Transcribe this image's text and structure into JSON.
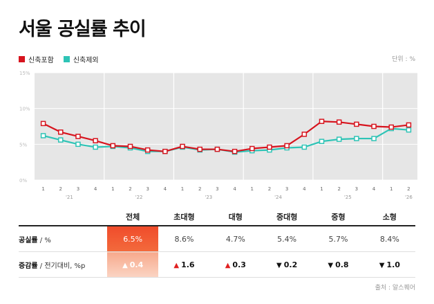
{
  "title": "서울 공실률 추이",
  "unit_label": "단위 : %",
  "source": "출처 : 알스퀘어",
  "legend": [
    {
      "label": "신축포함",
      "color": "#d7141e"
    },
    {
      "label": "신축제외",
      "color": "#2ec4b6"
    }
  ],
  "chart_data": {
    "type": "line",
    "title": "서울 공실률 추이",
    "xlabel": "",
    "ylabel": "",
    "ylim": [
      0,
      15
    ],
    "yticks": [
      "0%",
      "5%",
      "10%",
      "15%"
    ],
    "ytick_values": [
      0,
      5,
      10,
      15
    ],
    "grid": true,
    "legend_position": "top-left",
    "x": [
      "'21 Q1",
      "'21 Q2",
      "'21 Q3",
      "'21 Q4",
      "'22 Q1",
      "'22 Q2",
      "'22 Q3",
      "'22 Q4",
      "'23 Q1",
      "'23 Q2",
      "'23 Q3",
      "'23 Q4",
      "'24 Q1",
      "'24 Q2",
      "'24 Q3",
      "'24 Q4",
      "'25 Q1",
      "'25 Q2",
      "'25 Q3",
      "'25 Q4",
      "'26 Q1",
      "'26 Q2"
    ],
    "quarter_labels": [
      "1",
      "2",
      "3",
      "4",
      "1",
      "2",
      "3",
      "4",
      "1",
      "2",
      "3",
      "4",
      "1",
      "2",
      "3",
      "4",
      "1",
      "2",
      "3",
      "4",
      "1",
      "2"
    ],
    "year_labels": [
      "'21",
      "'22",
      "'23",
      "'24",
      "'25",
      "'26"
    ],
    "series": [
      {
        "name": "신축포함",
        "color": "#d7141e",
        "values": [
          7.9,
          6.7,
          6.1,
          5.5,
          4.8,
          4.7,
          4.2,
          4.0,
          4.7,
          4.3,
          4.3,
          4.0,
          4.4,
          4.6,
          4.8,
          6.4,
          8.2,
          8.1,
          7.8,
          7.5,
          7.4,
          7.7
        ]
      },
      {
        "name": "신축제외",
        "color": "#2ec4b6",
        "values": [
          6.2,
          5.6,
          5.0,
          4.6,
          4.7,
          4.5,
          4.0,
          4.0,
          4.6,
          4.2,
          4.3,
          3.9,
          4.1,
          4.2,
          4.5,
          4.6,
          5.4,
          5.7,
          5.8,
          5.8,
          7.2,
          7.0
        ]
      }
    ]
  },
  "table": {
    "columns": [
      "전체",
      "초대형",
      "대형",
      "중대형",
      "중형",
      "소형"
    ],
    "rows": [
      {
        "label": "공실률",
        "sub": " / %",
        "cells": [
          "6.5%",
          "8.6%",
          "4.7%",
          "5.4%",
          "5.7%",
          "8.4%"
        ]
      },
      {
        "label": "증감률",
        "sub": " / 전기대비, %p",
        "cells": [
          "0.4",
          "1.6",
          "0.3",
          "0.2",
          "0.8",
          "1.0"
        ],
        "directions": [
          "up",
          "up",
          "up",
          "down",
          "down",
          "down"
        ],
        "arrows": {
          "up": "▲",
          "down": "▼"
        }
      }
    ]
  }
}
